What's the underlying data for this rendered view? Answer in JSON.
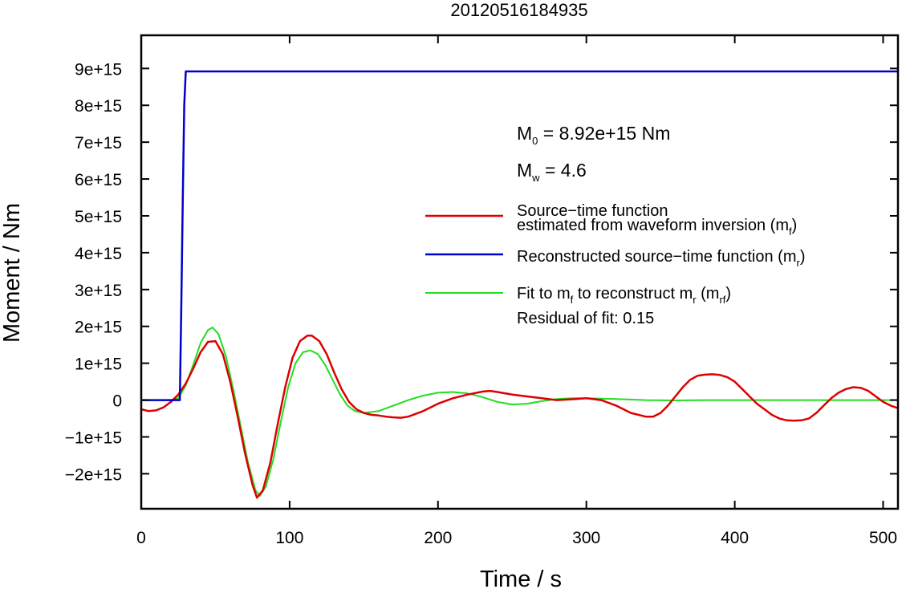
{
  "chart_data": {
    "type": "line",
    "title": "20120516184935",
    "xlabel": "Time / s",
    "ylabel": "Moment / Nm",
    "xlim": [
      0,
      510
    ],
    "ylim": [
      -2950000000000000.0,
      9900000000000000.0
    ],
    "xticks": [
      {
        "value": 0,
        "label": "0"
      },
      {
        "value": 100,
        "label": "100"
      },
      {
        "value": 200,
        "label": "200"
      },
      {
        "value": 300,
        "label": "300"
      },
      {
        "value": 400,
        "label": "400"
      },
      {
        "value": 500,
        "label": "500"
      }
    ],
    "yticks": [
      {
        "value": -2000000000000000.0,
        "label": "−2e+15"
      },
      {
        "value": -1000000000000000.0,
        "label": "−1e+15"
      },
      {
        "value": 0,
        "label": "0"
      },
      {
        "value": 1000000000000000.0,
        "label": "1e+15"
      },
      {
        "value": 2000000000000000.0,
        "label": "2e+15"
      },
      {
        "value": 3000000000000000.0,
        "label": "3e+15"
      },
      {
        "value": 4000000000000000.0,
        "label": "4e+15"
      },
      {
        "value": 5000000000000000.0,
        "label": "5e+15"
      },
      {
        "value": 6000000000000000.0,
        "label": "6e+15"
      },
      {
        "value": 7000000000000000.0,
        "label": "7e+15"
      },
      {
        "value": 8000000000000000.0,
        "label": "8e+15"
      },
      {
        "value": 9000000000000000.0,
        "label": "9e+15"
      }
    ],
    "grid": false,
    "legend_position": "right",
    "series": [
      {
        "key": "mr",
        "color": "#0000cc",
        "x": [
          0,
          26,
          27,
          28,
          29,
          30,
          510
        ],
        "y": [
          0,
          0,
          2500000000000000.0,
          5500000000000000.0,
          8000000000000000.0,
          8920000000000000.0,
          8920000000000000.0
        ]
      },
      {
        "key": "mf",
        "color": "#dd0000",
        "x": [
          0,
          5,
          10,
          15,
          20,
          25,
          30,
          35,
          40,
          45,
          50,
          55,
          60,
          65,
          70,
          75,
          78,
          82,
          87,
          92,
          97,
          102,
          107,
          112,
          115,
          120,
          125,
          130,
          135,
          140,
          145,
          150,
          155,
          160,
          165,
          170,
          175,
          180,
          190,
          200,
          210,
          220,
          230,
          235,
          240,
          250,
          260,
          270,
          280,
          290,
          300,
          310,
          320,
          330,
          340,
          345,
          350,
          355,
          360,
          365,
          370,
          375,
          380,
          385,
          390,
          395,
          400,
          405,
          410,
          415,
          420,
          425,
          430,
          435,
          440,
          445,
          450,
          455,
          460,
          465,
          470,
          475,
          480,
          485,
          490,
          495,
          500,
          505,
          510
        ],
        "y": [
          -250000000000000.0,
          -300000000000000.0,
          -280000000000000.0,
          -200000000000000.0,
          -50000000000000.0,
          150000000000000.0,
          450000000000000.0,
          850000000000000.0,
          1300000000000000.0,
          1580000000000000.0,
          1600000000000000.0,
          1250000000000000.0,
          500000000000000.0,
          -450000000000000.0,
          -1450000000000000.0,
          -2300000000000000.0,
          -2650000000000000.0,
          -2450000000000000.0,
          -1700000000000000.0,
          -650000000000000.0,
          350000000000000.0,
          1150000000000000.0,
          1600000000000000.0,
          1750000000000000.0,
          1750000000000000.0,
          1600000000000000.0,
          1250000000000000.0,
          750000000000000.0,
          300000000000000.0,
          -50000000000000.0,
          -250000000000000.0,
          -350000000000000.0,
          -400000000000000.0,
          -420000000000000.0,
          -450000000000000.0,
          -470000000000000.0,
          -480000000000000.0,
          -450000000000000.0,
          -300000000000000.0,
          -100000000000000.0,
          50000000000000.0,
          150000000000000.0,
          230000000000000.0,
          250000000000000.0,
          220000000000000.0,
          150000000000000.0,
          100000000000000.0,
          50000000000000.0,
          0.0,
          20000000000000.0,
          50000000000000.0,
          0.0,
          -150000000000000.0,
          -350000000000000.0,
          -450000000000000.0,
          -450000000000000.0,
          -350000000000000.0,
          -150000000000000.0,
          100000000000000.0,
          350000000000000.0,
          550000000000000.0,
          660000000000000.0,
          690000000000000.0,
          700000000000000.0,
          680000000000000.0,
          620000000000000.0,
          500000000000000.0,
          300000000000000.0,
          100000000000000.0,
          -100000000000000.0,
          -250000000000000.0,
          -400000000000000.0,
          -500000000000000.0,
          -550000000000000.0,
          -560000000000000.0,
          -550000000000000.0,
          -500000000000000.0,
          -350000000000000.0,
          -150000000000000.0,
          50000000000000.0,
          200000000000000.0,
          300000000000000.0,
          350000000000000.0,
          330000000000000.0,
          250000000000000.0,
          100000000000000.0,
          -50000000000000.0,
          -150000000000000.0,
          -220000000000000.0
        ]
      },
      {
        "key": "mrf",
        "color": "#22dd22",
        "x": [
          0,
          10,
          20,
          25,
          30,
          35,
          40,
          45,
          48,
          52,
          57,
          62,
          67,
          72,
          77,
          80,
          84,
          89,
          94,
          99,
          104,
          109,
          114,
          119,
          124,
          129,
          134,
          139,
          144,
          150,
          160,
          170,
          180,
          190,
          200,
          210,
          220,
          230,
          240,
          250,
          260,
          270,
          280,
          290,
          300,
          320,
          340,
          360,
          380,
          400,
          450,
          510
        ],
        "y": [
          0,
          0,
          0,
          50000000000000.0,
          400000000000000.0,
          950000000000000.0,
          1550000000000000.0,
          1900000000000000.0,
          1970000000000000.0,
          1800000000000000.0,
          1200000000000000.0,
          300000000000000.0,
          -700000000000000.0,
          -1700000000000000.0,
          -2450000000000000.0,
          -2600000000000000.0,
          -2350000000000000.0,
          -1600000000000000.0,
          -600000000000000.0,
          350000000000000.0,
          1000000000000000.0,
          1300000000000000.0,
          1350000000000000.0,
          1250000000000000.0,
          950000000000000.0,
          550000000000000.0,
          150000000000000.0,
          -150000000000000.0,
          -300000000000000.0,
          -350000000000000.0,
          -300000000000000.0,
          -150000000000000.0,
          0.0,
          120000000000000.0,
          200000000000000.0,
          220000000000000.0,
          180000000000000.0,
          80000000000000.0,
          -50000000000000.0,
          -120000000000000.0,
          -100000000000000.0,
          -30000000000000.0,
          30000000000000.0,
          50000000000000.0,
          50000000000000.0,
          30000000000000.0,
          0.0,
          -10000000000000.0,
          0.0,
          0.0,
          0.0,
          0.0
        ]
      }
    ],
    "annotations": {
      "m0": {
        "prefix": "M",
        "sub": "0",
        "text": " = 8.92e+15 Nm"
      },
      "mw": {
        "prefix": "M",
        "sub": "w",
        "text": " = 4.6"
      },
      "legend": [
        {
          "series": "mf",
          "lines": [
            "Source−time function",
            "estimated from waveform inversion (m"
          ],
          "sub": "f",
          "suffix": ")"
        },
        {
          "series": "mr",
          "text": "Reconstructed source−time function (m",
          "sub": "r",
          "suffix": ")"
        },
        {
          "series": "mrf",
          "pre": "Fit to m",
          "sub1": "f",
          "mid": " to reconstruct m",
          "sub2": "r",
          "mid2": " (m",
          "sub3": "rf",
          "suffix": ")"
        }
      ],
      "residual": "Residual of fit: 0.15"
    }
  }
}
